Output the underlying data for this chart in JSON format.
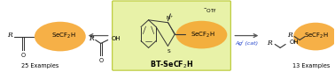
{
  "bg_color": "#ffffff",
  "center_box_color": "#e8f2a8",
  "center_box_border": "#b8c830",
  "highlight_color": "#f5a833",
  "highlight_opacity": 0.9,
  "arrow_color": "#555555",
  "ag_cat_color": "#2244cc",
  "ag_cat_text": "Agᴵ (cat)",
  "bt_label": "BT-SeCF₂H",
  "examples_left": "25 Examples",
  "examples_right": "13 Examples",
  "font_size_small": 5.0,
  "font_size_label": 5.5,
  "font_size_bt": 5.8
}
